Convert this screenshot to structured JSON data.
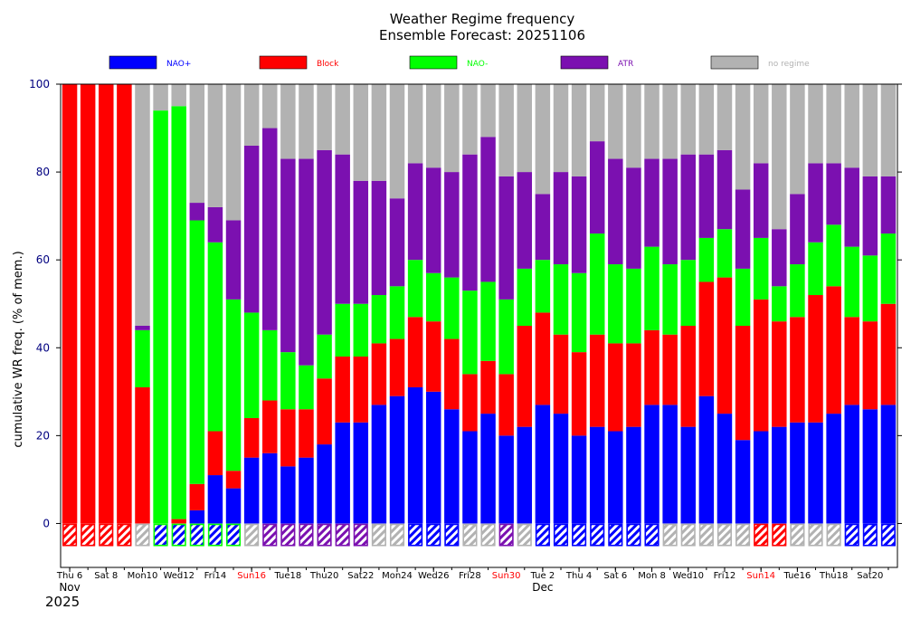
{
  "chart_data": {
    "type": "bar",
    "title": "Weather Regime frequency",
    "subtitle": "Ensemble Forecast: 20251106",
    "ylabel": "cumulative WR freq. (% of mem.)",
    "xlabel": "",
    "ylim": [
      -10,
      100
    ],
    "yticks": [
      0,
      20,
      40,
      60,
      80,
      100
    ],
    "stacked": true,
    "legend_position": "top",
    "colors": {
      "NAO+": "#0000ff",
      "Block": "#ff0000",
      "NAO-": "#00ff00",
      "ATR": "#7b10b0",
      "no regime": "#b2b2b2",
      "tick_default": "#000000",
      "tick_sunday": "#ff0000",
      "ytick": "#000080"
    },
    "categories": [
      "Nov 6",
      "Nov 7",
      "Nov 8",
      "Nov 9",
      "Nov 10",
      "Nov 11",
      "Nov 12",
      "Nov 13",
      "Nov 14",
      "Nov 15",
      "Nov 16",
      "Nov 17",
      "Nov 18",
      "Nov 19",
      "Nov 20",
      "Nov 21",
      "Nov 22",
      "Nov 23",
      "Nov 24",
      "Nov 25",
      "Nov 26",
      "Nov 27",
      "Nov 28",
      "Nov 29",
      "Nov 30",
      "Dec 1",
      "Dec 2",
      "Dec 3",
      "Dec 4",
      "Dec 5",
      "Dec 6",
      "Dec 7",
      "Dec 8",
      "Dec 9",
      "Dec 10",
      "Dec 11",
      "Dec 12",
      "Dec 13",
      "Dec 14",
      "Dec 15",
      "Dec 16",
      "Dec 17",
      "Dec 18",
      "Dec 19",
      "Dec 20",
      "Dec 21"
    ],
    "series": [
      {
        "name": "NAO+",
        "values": [
          0,
          0,
          0,
          0,
          0,
          0,
          0,
          3,
          11,
          8,
          15,
          16,
          13,
          15,
          18,
          23,
          23,
          27,
          29,
          31,
          30,
          26,
          21,
          25,
          20,
          22,
          27,
          25,
          20,
          22,
          21,
          22,
          27,
          27,
          22,
          29,
          25,
          19,
          21,
          22,
          23,
          23,
          25,
          27,
          26,
          27
        ]
      },
      {
        "name": "Block",
        "values": [
          100,
          100,
          100,
          100,
          31,
          0,
          1,
          6,
          10,
          4,
          9,
          12,
          13,
          11,
          15,
          15,
          15,
          14,
          13,
          16,
          16,
          16,
          13,
          12,
          14,
          23,
          21,
          18,
          19,
          21,
          20,
          19,
          17,
          16,
          23,
          26,
          31,
          26,
          30,
          24,
          24,
          29,
          29,
          20,
          20,
          23
        ]
      },
      {
        "name": "NAO-",
        "values": [
          0,
          0,
          0,
          0,
          13,
          94,
          94,
          60,
          43,
          39,
          24,
          16,
          13,
          10,
          10,
          12,
          12,
          11,
          12,
          13,
          11,
          14,
          19,
          18,
          17,
          13,
          12,
          16,
          18,
          23,
          18,
          17,
          19,
          16,
          15,
          10,
          11,
          13,
          14,
          8,
          12,
          12,
          14,
          16,
          15,
          16
        ]
      },
      {
        "name": "ATR",
        "values": [
          0,
          0,
          0,
          0,
          1,
          0,
          0,
          4,
          8,
          18,
          38,
          46,
          44,
          47,
          42,
          34,
          28,
          26,
          20,
          22,
          24,
          24,
          31,
          33,
          28,
          22,
          15,
          21,
          22,
          21,
          24,
          23,
          20,
          24,
          24,
          19,
          18,
          18,
          17,
          13,
          16,
          18,
          14,
          18,
          18,
          13
        ]
      },
      {
        "name": "no regime",
        "values": [
          0,
          0,
          0,
          0,
          55,
          6,
          5,
          27,
          28,
          31,
          14,
          10,
          17,
          17,
          15,
          16,
          22,
          22,
          26,
          18,
          19,
          20,
          16,
          12,
          21,
          20,
          25,
          20,
          21,
          13,
          17,
          19,
          17,
          17,
          16,
          16,
          15,
          24,
          18,
          33,
          25,
          18,
          18,
          19,
          21,
          21
        ]
      }
    ],
    "dominant_regime": [
      "Block",
      "Block",
      "Block",
      "Block",
      "no regime",
      "NAO-",
      "NAO-",
      "NAO-",
      "NAO-",
      "NAO-",
      "no regime",
      "ATR",
      "ATR",
      "ATR",
      "ATR",
      "ATR",
      "ATR",
      "no regime",
      "no regime",
      "NAO+",
      "NAO+",
      "NAO+",
      "no regime",
      "no regime",
      "ATR",
      "no regime",
      "NAO+",
      "NAO+",
      "NAO+",
      "NAO+",
      "NAO+",
      "NAO+",
      "NAO+",
      "no regime",
      "no regime",
      "no regime",
      "no regime",
      "no regime",
      "Block",
      "Block",
      "no regime",
      "no regime",
      "no regime",
      "NAO+",
      "NAO+",
      "NAO+"
    ],
    "xtick_labels": [
      {
        "index": 0,
        "text": "Thu 6",
        "sunday": false
      },
      {
        "index": 2,
        "text": "Sat 8",
        "sunday": false
      },
      {
        "index": 4,
        "text": "Mon10",
        "sunday": false
      },
      {
        "index": 6,
        "text": "Wed12",
        "sunday": false
      },
      {
        "index": 8,
        "text": "Fri14",
        "sunday": false
      },
      {
        "index": 10,
        "text": "Sun16",
        "sunday": true
      },
      {
        "index": 12,
        "text": "Tue18",
        "sunday": false
      },
      {
        "index": 14,
        "text": "Thu20",
        "sunday": false
      },
      {
        "index": 16,
        "text": "Sat22",
        "sunday": false
      },
      {
        "index": 18,
        "text": "Mon24",
        "sunday": false
      },
      {
        "index": 20,
        "text": "Wed26",
        "sunday": false
      },
      {
        "index": 22,
        "text": "Fri28",
        "sunday": false
      },
      {
        "index": 24,
        "text": "Sun30",
        "sunday": true
      },
      {
        "index": 26,
        "text": "Tue 2",
        "sunday": false
      },
      {
        "index": 28,
        "text": "Thu 4",
        "sunday": false
      },
      {
        "index": 30,
        "text": "Sat 6",
        "sunday": false
      },
      {
        "index": 32,
        "text": "Mon 8",
        "sunday": false
      },
      {
        "index": 34,
        "text": "Wed10",
        "sunday": false
      },
      {
        "index": 36,
        "text": "Fri12",
        "sunday": false
      },
      {
        "index": 38,
        "text": "Sun14",
        "sunday": true
      },
      {
        "index": 40,
        "text": "Tue16",
        "sunday": false
      },
      {
        "index": 42,
        "text": "Thu18",
        "sunday": false
      },
      {
        "index": 44,
        "text": "Sat20",
        "sunday": false
      }
    ],
    "month_labels": [
      {
        "index": 0,
        "text": "Nov"
      },
      {
        "index": 26,
        "text": "Dec"
      }
    ],
    "year_label": "2025"
  }
}
